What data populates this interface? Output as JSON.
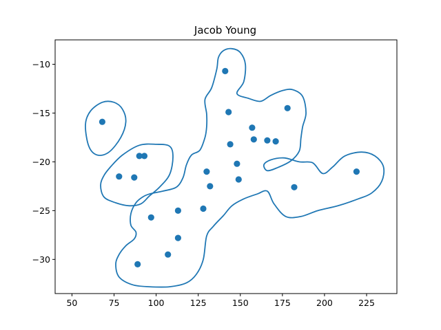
{
  "chart_data": {
    "type": "scatter",
    "title": "Jacob Young",
    "xlabel": "",
    "ylabel": "",
    "xlim": [
      40,
      243
    ],
    "ylim": [
      -33.5,
      -7.5
    ],
    "x_ticks": [
      50,
      75,
      100,
      125,
      150,
      175,
      200,
      225
    ],
    "y_ticks": [
      -10,
      -15,
      -20,
      -25,
      -30
    ],
    "grid": false,
    "colors": {
      "points": "#1f77b4",
      "contour": "#1f77b4",
      "axes": "#000000"
    },
    "series": [
      {
        "kind": "points",
        "x": [
          68,
          78,
          87,
          90,
          93,
          97,
          107,
          113,
          113,
          128,
          130,
          132,
          141,
          143,
          144,
          148,
          149,
          157,
          158,
          166,
          171,
          178,
          182,
          219,
          89
        ],
        "y": [
          -15.9,
          -21.5,
          -21.6,
          -19.4,
          -19.4,
          -25.7,
          -29.5,
          -27.8,
          -25.0,
          -24.8,
          -21.0,
          -22.5,
          -10.7,
          -14.9,
          -18.2,
          -20.2,
          -21.8,
          -16.5,
          -17.7,
          -17.8,
          -17.9,
          -14.5,
          -22.6,
          -21.0,
          -30.5
        ]
      },
      {
        "kind": "contour",
        "loops": [
          [
            [
              58,
              -16.2
            ],
            [
              61,
              -14.8
            ],
            [
              68,
              -13.9
            ],
            [
              75,
              -13.9
            ],
            [
              80,
              -14.6
            ],
            [
              82,
              -15.9
            ],
            [
              79,
              -17.5
            ],
            [
              72,
              -19.0
            ],
            [
              65,
              -19.3
            ],
            [
              60,
              -18.4
            ],
            [
              58,
              -16.2
            ]
          ],
          [
            [
              80,
              -19.3
            ],
            [
              90,
              -18.3
            ],
            [
              100,
              -18.2
            ],
            [
              108,
              -18.4
            ],
            [
              110,
              -19.5
            ],
            [
              108,
              -21.3
            ],
            [
              102,
              -22.6
            ],
            [
              96,
              -23.5
            ],
            [
              91,
              -24.3
            ],
            [
              84,
              -24.5
            ],
            [
              76,
              -24.2
            ],
            [
              69,
              -23.6
            ],
            [
              67,
              -22.4
            ],
            [
              69,
              -21.4
            ],
            [
              73,
              -20.5
            ],
            [
              80,
              -19.3
            ]
          ],
          [
            [
              140,
              -8.6
            ],
            [
              145,
              -8.4
            ],
            [
              150,
              -8.8
            ],
            [
              153,
              -10.0
            ],
            [
              152,
              -11.8
            ],
            [
              148,
              -13.0
            ],
            [
              155,
              -13.5
            ],
            [
              162,
              -13.8
            ],
            [
              168,
              -13.2
            ],
            [
              175,
              -12.7
            ],
            [
              181,
              -12.6
            ],
            [
              187,
              -13.3
            ],
            [
              189,
              -15.0
            ],
            [
              187,
              -16.4
            ],
            [
              186,
              -17.6
            ],
            [
              185,
              -18.9
            ],
            [
              180,
              -19.9
            ],
            [
              172,
              -20.6
            ],
            [
              166,
              -20.9
            ],
            [
              164,
              -20.3
            ],
            [
              168,
              -19.8
            ],
            [
              176,
              -19.6
            ],
            [
              185,
              -20.0
            ],
            [
              193,
              -20.1
            ],
            [
              199,
              -21.2
            ],
            [
              205,
              -20.5
            ],
            [
              212,
              -19.4
            ],
            [
              222,
              -19.0
            ],
            [
              230,
              -19.4
            ],
            [
              235,
              -20.5
            ],
            [
              234,
              -22.0
            ],
            [
              228,
              -23.2
            ],
            [
              220,
              -23.8
            ],
            [
              208,
              -24.5
            ],
            [
              196,
              -25.0
            ],
            [
              186,
              -25.6
            ],
            [
              177,
              -25.6
            ],
            [
              170,
              -24.3
            ],
            [
              166,
              -23.0
            ],
            [
              160,
              -23.3
            ],
            [
              152,
              -23.8
            ],
            [
              145,
              -24.5
            ],
            [
              140,
              -25.5
            ],
            [
              134,
              -26.6
            ],
            [
              130,
              -27.6
            ],
            [
              128,
              -30.0
            ],
            [
              124,
              -31.5
            ],
            [
              118,
              -32.4
            ],
            [
              108,
              -32.8
            ],
            [
              96,
              -32.8
            ],
            [
              86,
              -32.6
            ],
            [
              78,
              -31.8
            ],
            [
              76,
              -30.5
            ],
            [
              78,
              -29.5
            ],
            [
              82,
              -28.6
            ],
            [
              87,
              -27.9
            ],
            [
              88,
              -27.2
            ],
            [
              85,
              -26.5
            ],
            [
              85,
              -25.3
            ],
            [
              88,
              -24.2
            ],
            [
              92,
              -23.6
            ],
            [
              96,
              -23.3
            ],
            [
              104,
              -23.0
            ],
            [
              112,
              -22.6
            ],
            [
              116,
              -21.6
            ],
            [
              118,
              -20.3
            ],
            [
              121,
              -19.3
            ],
            [
              126,
              -18.8
            ],
            [
              129,
              -17.5
            ],
            [
              130,
              -16.4
            ],
            [
              130,
              -15.1
            ],
            [
              129,
              -13.6
            ],
            [
              133,
              -12.4
            ],
            [
              136,
              -10.5
            ],
            [
              137,
              -9.3
            ],
            [
              140,
              -8.6
            ]
          ]
        ]
      }
    ]
  }
}
